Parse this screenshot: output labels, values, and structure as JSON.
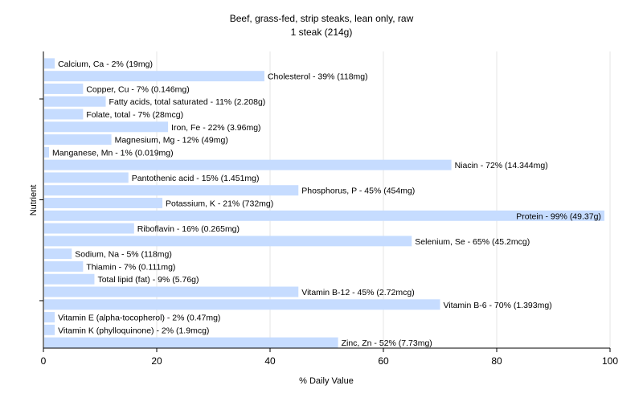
{
  "chart_data": {
    "type": "bar",
    "orientation": "horizontal",
    "title": "Beef, grass-fed, strip steaks, lean only, raw",
    "subtitle": "1 steak (214g)",
    "xlabel": "% Daily Value",
    "ylabel": "Nutrient",
    "xlim": [
      0,
      100
    ],
    "xticks": [
      0,
      20,
      40,
      60,
      80,
      100
    ],
    "grid": true,
    "bar_color": "#c6dcff",
    "grid_color": "#e6e6e6",
    "categories": [
      "Calcium, Ca",
      "Cholesterol",
      "Copper, Cu",
      "Fatty acids, total saturated",
      "Folate, total",
      "Iron, Fe",
      "Magnesium, Mg",
      "Manganese, Mn",
      "Niacin",
      "Pantothenic acid",
      "Phosphorus, P",
      "Potassium, K",
      "Protein",
      "Riboflavin",
      "Selenium, Se",
      "Sodium, Na",
      "Thiamin",
      "Total lipid (fat)",
      "Vitamin B-12",
      "Vitamin B-6",
      "Vitamin E (alpha-tocopherol)",
      "Vitamin K (phylloquinone)",
      "Zinc, Zn"
    ],
    "values": [
      2,
      39,
      7,
      11,
      7,
      22,
      12,
      1,
      72,
      15,
      45,
      21,
      99,
      16,
      65,
      5,
      7,
      9,
      45,
      70,
      2,
      2,
      52
    ],
    "labels": [
      "Calcium, Ca - 2% (19mg)",
      "Cholesterol - 39% (118mg)",
      "Copper, Cu - 7% (0.146mg)",
      "Fatty acids, total saturated - 11% (2.208g)",
      "Folate, total - 7% (28mcg)",
      "Iron, Fe - 22% (3.96mg)",
      "Magnesium, Mg - 12% (49mg)",
      "Manganese, Mn - 1% (0.019mg)",
      "Niacin - 72% (14.344mg)",
      "Pantothenic acid - 15% (1.451mg)",
      "Phosphorus, P - 45% (454mg)",
      "Potassium, K - 21% (732mg)",
      "Protein - 99% (49.37g)",
      "Riboflavin - 16% (0.265mg)",
      "Selenium, Se - 65% (45.2mcg)",
      "Sodium, Na - 5% (118mg)",
      "Thiamin - 7% (0.111mg)",
      "Total lipid (fat) - 9% (5.76g)",
      "Vitamin B-12 - 45% (2.72mcg)",
      "Vitamin B-6 - 70% (1.393mg)",
      "Vitamin E (alpha-tocopherol) - 2% (0.47mg)",
      "Vitamin K (phylloquinone) - 2% (1.9mcg)",
      "Zinc, Zn - 52% (7.73mg)"
    ]
  }
}
